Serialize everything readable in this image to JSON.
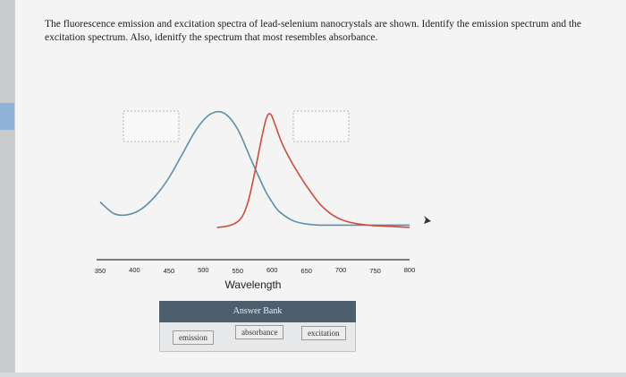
{
  "question": {
    "text": "The fluorescence emission and excitation spectra of lead-selenium nanocrystals are shown. Identify the emission spectrum and the excitation spectrum. Also, idenitfy the spectrum that most resembles absorbance."
  },
  "answer_bank": {
    "header": "Answer Bank",
    "options": [
      "emission",
      "absorbance",
      "excitation"
    ]
  },
  "colors": {
    "blue_curve": "#5b8fa9",
    "red_curve": "#d24a3a",
    "axis": "#333333",
    "answer_header_bg": "#4d5e6c"
  },
  "chart_data": {
    "type": "line",
    "xlabel": "Wavelength",
    "ylabel": "",
    "xlim": [
      350,
      800
    ],
    "x_ticks": [
      "350",
      "400",
      "450",
      "500",
      "550",
      "600",
      "650",
      "700",
      "750",
      "800"
    ],
    "series": [
      {
        "color": "#5b8fa9",
        "x": [
          350,
          370,
          390,
          410,
          430,
          450,
          470,
          490,
          510,
          530,
          550,
          570,
          590,
          600,
          610,
          630,
          650,
          670,
          700,
          750,
          800
        ],
        "y": [
          0.22,
          0.12,
          0.11,
          0.16,
          0.27,
          0.43,
          0.64,
          0.85,
          0.98,
          0.99,
          0.85,
          0.58,
          0.32,
          0.22,
          0.14,
          0.06,
          0.03,
          0.02,
          0.02,
          0.02,
          0.02
        ]
      },
      {
        "color": "#d24a3a",
        "x": [
          520,
          540,
          555,
          565,
          575,
          585,
          592,
          598,
          605,
          615,
          630,
          650,
          670,
          690,
          710,
          740,
          770,
          800
        ],
        "y": [
          0.0,
          0.02,
          0.08,
          0.22,
          0.48,
          0.78,
          0.95,
          0.98,
          0.88,
          0.72,
          0.55,
          0.36,
          0.2,
          0.1,
          0.05,
          0.02,
          0.01,
          0.0
        ]
      }
    ]
  }
}
